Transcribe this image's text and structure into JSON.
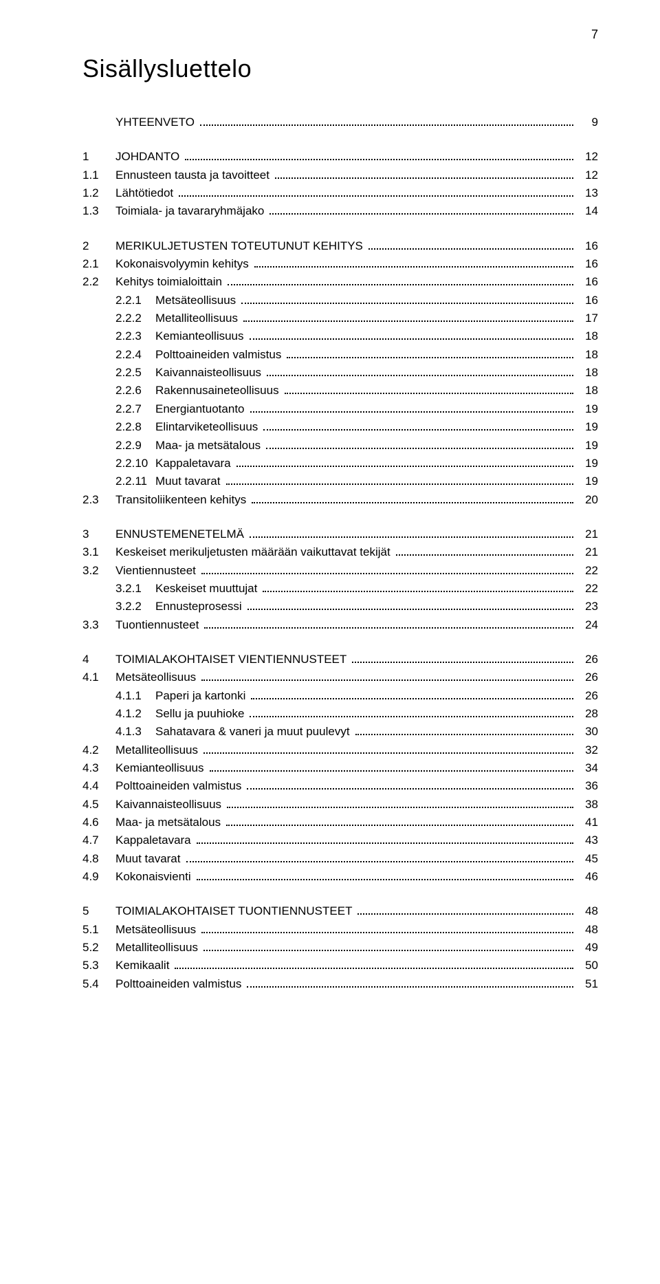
{
  "page_number": "7",
  "title": "Sisällysluettelo",
  "font": {
    "title_size_pt": 28,
    "body_size_pt": 13
  },
  "colors": {
    "text": "#000000",
    "background": "#ffffff",
    "dots": "#000000"
  },
  "toc": [
    {
      "rows": [
        {
          "level": 1,
          "num": "",
          "label": "YHTEENVETO",
          "upper": true,
          "page": "9"
        }
      ]
    },
    {
      "rows": [
        {
          "level": 1,
          "num": "1",
          "label": "JOHDANTO",
          "upper": true,
          "page": "12"
        },
        {
          "level": 2,
          "num": "1.1",
          "label": "Ennusteen tausta ja tavoitteet",
          "page": "12"
        },
        {
          "level": 2,
          "num": "1.2",
          "label": "Lähtötiedot",
          "page": "13"
        },
        {
          "level": 2,
          "num": "1.3",
          "label": "Toimiala- ja tavararyhmäjako",
          "page": "14"
        }
      ]
    },
    {
      "rows": [
        {
          "level": 1,
          "num": "2",
          "label": "MERIKULJETUSTEN TOTEUTUNUT KEHITYS",
          "upper": true,
          "page": "16"
        },
        {
          "level": 2,
          "num": "2.1",
          "label": "Kokonaisvolyymin kehitys",
          "page": "16"
        },
        {
          "level": 2,
          "num": "2.2",
          "label": "Kehitys toimialoittain",
          "page": "16"
        },
        {
          "level": 3,
          "num": "2.2.1",
          "label": "Metsäteollisuus",
          "page": "16"
        },
        {
          "level": 3,
          "num": "2.2.2",
          "label": "Metalliteollisuus",
          "page": "17"
        },
        {
          "level": 3,
          "num": "2.2.3",
          "label": "Kemianteollisuus",
          "page": "18"
        },
        {
          "level": 3,
          "num": "2.2.4",
          "label": "Polttoaineiden valmistus",
          "page": "18"
        },
        {
          "level": 3,
          "num": "2.2.5",
          "label": "Kaivannaisteollisuus",
          "page": "18"
        },
        {
          "level": 3,
          "num": "2.2.6",
          "label": "Rakennusaineteollisuus",
          "page": "18"
        },
        {
          "level": 3,
          "num": "2.2.7",
          "label": "Energiantuotanto",
          "page": "19"
        },
        {
          "level": 3,
          "num": "2.2.8",
          "label": "Elintarviketeollisuus",
          "page": "19"
        },
        {
          "level": 3,
          "num": "2.2.9",
          "label": "Maa- ja metsätalous",
          "page": "19"
        },
        {
          "level": 3,
          "num": "2.2.10",
          "label": "Kappaletavara",
          "page": "19"
        },
        {
          "level": 3,
          "num": "2.2.11",
          "label": "Muut tavarat",
          "page": "19"
        },
        {
          "level": 2,
          "num": "2.3",
          "label": "Transitoliikenteen kehitys",
          "page": "20"
        }
      ]
    },
    {
      "rows": [
        {
          "level": 1,
          "num": "3",
          "label": "ENNUSTEMENETELMÄ",
          "upper": true,
          "page": "21"
        },
        {
          "level": 2,
          "num": "3.1",
          "label": "Keskeiset merikuljetusten määrään vaikuttavat tekijät",
          "page": "21"
        },
        {
          "level": 2,
          "num": "3.2",
          "label": "Vientiennusteet",
          "page": "22"
        },
        {
          "level": 3,
          "num": "3.2.1",
          "label": "Keskeiset muuttujat",
          "page": "22"
        },
        {
          "level": 3,
          "num": "3.2.2",
          "label": "Ennusteprosessi",
          "page": "23"
        },
        {
          "level": 2,
          "num": "3.3",
          "label": "Tuontiennusteet",
          "page": "24"
        }
      ]
    },
    {
      "rows": [
        {
          "level": 1,
          "num": "4",
          "label": "TOIMIALAKOHTAISET VIENTIENNUSTEET",
          "upper": true,
          "page": "26"
        },
        {
          "level": 2,
          "num": "4.1",
          "label": "Metsäteollisuus",
          "page": "26"
        },
        {
          "level": 3,
          "num": "4.1.1",
          "label": "Paperi ja kartonki",
          "page": "26"
        },
        {
          "level": 3,
          "num": "4.1.2",
          "label": "Sellu ja puuhioke",
          "page": "28"
        },
        {
          "level": 3,
          "num": "4.1.3",
          "label": "Sahatavara & vaneri ja muut puulevyt",
          "page": "30"
        },
        {
          "level": 2,
          "num": "4.2",
          "label": "Metalliteollisuus",
          "page": "32"
        },
        {
          "level": 2,
          "num": "4.3",
          "label": "Kemianteollisuus",
          "page": "34"
        },
        {
          "level": 2,
          "num": "4.4",
          "label": "Polttoaineiden valmistus",
          "page": "36"
        },
        {
          "level": 2,
          "num": "4.5",
          "label": "Kaivannaisteollisuus",
          "page": "38"
        },
        {
          "level": 2,
          "num": "4.6",
          "label": "Maa- ja metsätalous",
          "page": "41"
        },
        {
          "level": 2,
          "num": "4.7",
          "label": "Kappaletavara",
          "page": "43"
        },
        {
          "level": 2,
          "num": "4.8",
          "label": "Muut tavarat",
          "page": "45"
        },
        {
          "level": 2,
          "num": "4.9",
          "label": "Kokonaisvienti",
          "page": "46"
        }
      ]
    },
    {
      "rows": [
        {
          "level": 1,
          "num": "5",
          "label": "TOIMIALAKOHTAISET TUONTIENNUSTEET",
          "upper": true,
          "page": "48"
        },
        {
          "level": 2,
          "num": "5.1",
          "label": "Metsäteollisuus",
          "page": "48"
        },
        {
          "level": 2,
          "num": "5.2",
          "label": "Metalliteollisuus",
          "page": "49"
        },
        {
          "level": 2,
          "num": "5.3",
          "label": "Kemikaalit",
          "page": "50"
        },
        {
          "level": 2,
          "num": "5.4",
          "label": "Polttoaineiden valmistus",
          "page": "51"
        }
      ]
    }
  ]
}
